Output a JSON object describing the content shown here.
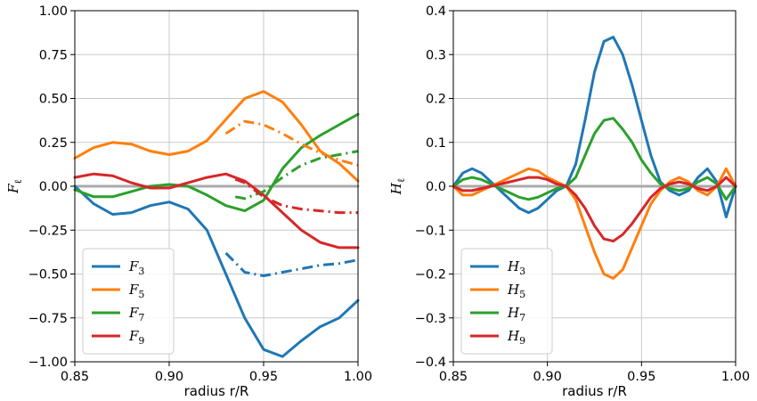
{
  "chart_data": [
    {
      "type": "line",
      "ylabel": "F",
      "ylabel_sub": "ℓ",
      "xlabel": "radius r/R",
      "xlim": [
        0.85,
        1.0
      ],
      "ylim": [
        -1.0,
        1.0
      ],
      "xticks": [
        "0.85",
        "0.90",
        "0.95",
        "1.00"
      ],
      "yticks": [
        "1.00",
        "0.75",
        "0.50",
        "0.25",
        "0.00",
        "−0.25",
        "−0.50",
        "−0.75",
        "−1.00"
      ],
      "grid": true,
      "legend_position": "lower-left",
      "series": [
        {
          "name": "F",
          "sub": "3",
          "color": "#1f77b4",
          "style": "solid",
          "x": [
            0.85,
            0.86,
            0.87,
            0.88,
            0.89,
            0.9,
            0.91,
            0.92,
            0.93,
            0.94,
            0.95,
            0.96,
            0.97,
            0.98,
            0.99,
            1.0
          ],
          "y": [
            0.0,
            -0.1,
            -0.16,
            -0.15,
            -0.11,
            -0.09,
            -0.13,
            -0.25,
            -0.5,
            -0.75,
            -0.93,
            -0.97,
            -0.88,
            -0.8,
            -0.75,
            -0.65
          ]
        },
        {
          "name": "F",
          "sub": "5",
          "color": "#ff7f0e",
          "style": "solid",
          "x": [
            0.85,
            0.86,
            0.87,
            0.88,
            0.89,
            0.9,
            0.91,
            0.92,
            0.93,
            0.94,
            0.95,
            0.96,
            0.97,
            0.98,
            0.99,
            1.0
          ],
          "y": [
            0.16,
            0.22,
            0.25,
            0.24,
            0.2,
            0.18,
            0.2,
            0.26,
            0.38,
            0.5,
            0.54,
            0.48,
            0.35,
            0.2,
            0.13,
            0.03
          ]
        },
        {
          "name": "F",
          "sub": "7",
          "color": "#2ca02c",
          "style": "solid",
          "x": [
            0.85,
            0.86,
            0.87,
            0.88,
            0.89,
            0.9,
            0.91,
            0.92,
            0.93,
            0.94,
            0.95,
            0.96,
            0.97,
            0.98,
            0.99,
            1.0
          ],
          "y": [
            -0.02,
            -0.06,
            -0.06,
            -0.03,
            0.0,
            0.01,
            0.0,
            -0.05,
            -0.11,
            -0.14,
            -0.08,
            0.1,
            0.22,
            0.29,
            0.35,
            0.41
          ]
        },
        {
          "name": "F",
          "sub": "9",
          "color": "#d62728",
          "style": "solid",
          "x": [
            0.85,
            0.86,
            0.87,
            0.88,
            0.89,
            0.9,
            0.91,
            0.92,
            0.93,
            0.94,
            0.95,
            0.96,
            0.97,
            0.98,
            0.99,
            1.0
          ],
          "y": [
            0.05,
            0.07,
            0.06,
            0.02,
            -0.01,
            -0.01,
            0.02,
            0.05,
            0.07,
            0.03,
            -0.05,
            -0.15,
            -0.25,
            -0.32,
            -0.35,
            -0.35
          ]
        },
        {
          "name": "",
          "color": "#1f77b4",
          "style": "dashdot",
          "x": [
            0.93,
            0.94,
            0.95,
            0.96,
            0.97,
            0.98,
            0.99,
            1.0
          ],
          "y": [
            -0.38,
            -0.49,
            -0.51,
            -0.49,
            -0.47,
            -0.45,
            -0.44,
            -0.42
          ]
        },
        {
          "name": "",
          "color": "#ff7f0e",
          "style": "dashdot",
          "x": [
            0.93,
            0.94,
            0.95,
            0.96,
            0.97,
            0.98,
            0.99,
            1.0
          ],
          "y": [
            0.3,
            0.37,
            0.35,
            0.3,
            0.24,
            0.19,
            0.15,
            0.12
          ]
        },
        {
          "name": "",
          "color": "#2ca02c",
          "style": "dashdot",
          "x": [
            0.935,
            0.94,
            0.95,
            0.96,
            0.97,
            0.98,
            0.99,
            1.0
          ],
          "y": [
            -0.06,
            -0.07,
            -0.03,
            0.05,
            0.12,
            0.16,
            0.18,
            0.2
          ]
        },
        {
          "name": "",
          "color": "#d62728",
          "style": "dashdot",
          "x": [
            0.935,
            0.94,
            0.95,
            0.96,
            0.97,
            0.98,
            0.99,
            1.0
          ],
          "y": [
            0.04,
            0.02,
            -0.06,
            -0.11,
            -0.13,
            -0.14,
            -0.15,
            -0.15
          ]
        },
        {
          "name": "",
          "color": "#a9a9a9",
          "style": "baseline",
          "x": [
            0.85,
            1.0
          ],
          "y": [
            0.0,
            0.0
          ]
        }
      ]
    },
    {
      "type": "line",
      "ylabel": "H",
      "ylabel_sub": "ℓ",
      "xlabel": "radius r/R",
      "xlim": [
        0.85,
        1.0
      ],
      "ylim": [
        -0.4,
        0.4
      ],
      "xticks": [
        "0.85",
        "0.90",
        "0.95",
        "1.00"
      ],
      "yticks": [
        "0.4",
        "0.3",
        "0.2",
        "0.1",
        "0.0",
        "−0.1",
        "−0.2",
        "−0.3",
        "−0.4"
      ],
      "grid": true,
      "legend_position": "lower-left",
      "series": [
        {
          "name": "H",
          "sub": "3",
          "color": "#1f77b4",
          "style": "solid",
          "x": [
            0.85,
            0.855,
            0.86,
            0.865,
            0.87,
            0.875,
            0.88,
            0.885,
            0.89,
            0.895,
            0.9,
            0.905,
            0.91,
            0.915,
            0.92,
            0.925,
            0.93,
            0.935,
            0.94,
            0.945,
            0.95,
            0.955,
            0.96,
            0.965,
            0.97,
            0.975,
            0.98,
            0.985,
            0.99,
            0.995,
            1.0
          ],
          "y": [
            0.0,
            0.03,
            0.04,
            0.03,
            0.01,
            -0.01,
            -0.03,
            -0.05,
            -0.06,
            -0.05,
            -0.03,
            -0.01,
            0.0,
            0.05,
            0.15,
            0.26,
            0.33,
            0.34,
            0.3,
            0.23,
            0.15,
            0.07,
            0.01,
            -0.01,
            -0.02,
            -0.01,
            0.02,
            0.04,
            0.01,
            -0.07,
            0.0
          ]
        },
        {
          "name": "H",
          "sub": "5",
          "color": "#ff7f0e",
          "style": "solid",
          "x": [
            0.85,
            0.855,
            0.86,
            0.865,
            0.87,
            0.875,
            0.88,
            0.885,
            0.89,
            0.895,
            0.9,
            0.905,
            0.91,
            0.915,
            0.92,
            0.925,
            0.93,
            0.935,
            0.94,
            0.945,
            0.95,
            0.955,
            0.96,
            0.965,
            0.97,
            0.975,
            0.98,
            0.985,
            0.99,
            0.995,
            1.0
          ],
          "y": [
            0.0,
            -0.02,
            -0.02,
            -0.01,
            0.0,
            0.01,
            0.02,
            0.03,
            0.04,
            0.035,
            0.02,
            0.01,
            0.0,
            -0.03,
            -0.09,
            -0.15,
            -0.2,
            -0.21,
            -0.19,
            -0.14,
            -0.09,
            -0.04,
            -0.01,
            0.01,
            0.02,
            0.01,
            -0.01,
            -0.02,
            0.0,
            0.04,
            0.0
          ]
        },
        {
          "name": "H",
          "sub": "7",
          "color": "#2ca02c",
          "style": "solid",
          "x": [
            0.85,
            0.855,
            0.86,
            0.865,
            0.87,
            0.875,
            0.88,
            0.885,
            0.89,
            0.895,
            0.9,
            0.905,
            0.91,
            0.915,
            0.92,
            0.925,
            0.93,
            0.935,
            0.94,
            0.945,
            0.95,
            0.955,
            0.96,
            0.965,
            0.97,
            0.975,
            0.98,
            0.985,
            0.99,
            0.995,
            1.0
          ],
          "y": [
            0.0,
            0.015,
            0.02,
            0.015,
            0.005,
            -0.005,
            -0.015,
            -0.025,
            -0.03,
            -0.025,
            -0.015,
            -0.005,
            0.0,
            0.02,
            0.07,
            0.12,
            0.15,
            0.155,
            0.13,
            0.1,
            0.06,
            0.03,
            0.005,
            -0.005,
            -0.01,
            -0.005,
            0.01,
            0.02,
            0.005,
            -0.03,
            0.0
          ]
        },
        {
          "name": "H",
          "sub": "9",
          "color": "#d62728",
          "style": "solid",
          "x": [
            0.85,
            0.855,
            0.86,
            0.865,
            0.87,
            0.875,
            0.88,
            0.885,
            0.89,
            0.895,
            0.9,
            0.905,
            0.91,
            0.915,
            0.92,
            0.925,
            0.93,
            0.935,
            0.94,
            0.945,
            0.95,
            0.955,
            0.96,
            0.965,
            0.97,
            0.975,
            0.98,
            0.985,
            0.99,
            0.995,
            1.0
          ],
          "y": [
            0.0,
            -0.01,
            -0.01,
            -0.005,
            0.0,
            0.005,
            0.01,
            0.015,
            0.02,
            0.02,
            0.015,
            0.005,
            0.0,
            -0.02,
            -0.05,
            -0.09,
            -0.12,
            -0.125,
            -0.11,
            -0.085,
            -0.055,
            -0.025,
            -0.005,
            0.005,
            0.01,
            0.005,
            -0.005,
            -0.01,
            0.0,
            0.02,
            0.0
          ]
        },
        {
          "name": "",
          "color": "#a9a9a9",
          "style": "baseline",
          "x": [
            0.85,
            1.0
          ],
          "y": [
            0.0,
            0.0
          ]
        }
      ]
    }
  ]
}
